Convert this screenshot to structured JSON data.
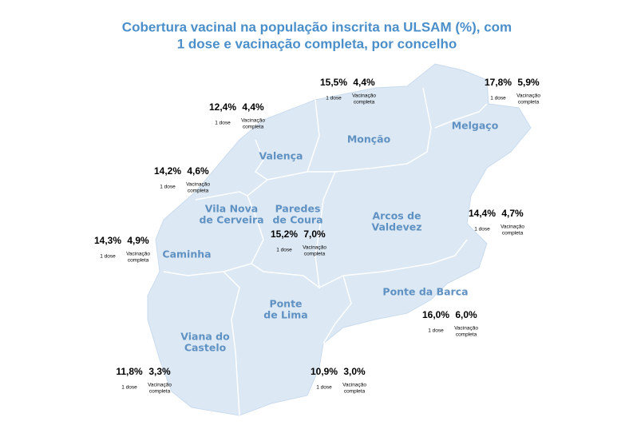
{
  "title": [
    "Cobertura vacinal na população inscrita na ULSAM (%), com",
    "1 dose e vacinação completa, por concelho"
  ],
  "regions": [
    {
      "name": [
        "Melgaço"
      ],
      "dose1": "17,8%",
      "complete": "5,9%",
      "dose1_label": "1 dose",
      "complete_label": [
        "Vacinação",
        "completa"
      ]
    },
    {
      "name": [
        "Monção"
      ],
      "dose1": "15,5%",
      "complete": "4,4%",
      "dose1_label": "1 dose",
      "complete_label": [
        "Vacinação",
        "completa"
      ]
    },
    {
      "name": [
        "Valença"
      ],
      "dose1": "12,4%",
      "complete": "4,4%",
      "dose1_label": "1 dose",
      "complete_label": [
        "Vacinação",
        "completa"
      ]
    },
    {
      "name": [
        "Vila Nova",
        "de Cerveira"
      ],
      "dose1": "14,2%",
      "complete": "4,6%",
      "dose1_label": "1 dose",
      "complete_label": [
        "Vacinação",
        "completa"
      ]
    },
    {
      "name": [
        "Paredes",
        "de Coura"
      ],
      "dose1": "15,2%",
      "complete": "7,0%",
      "dose1_label": "1 dose",
      "complete_label": [
        "Vacinação",
        "completa"
      ]
    },
    {
      "name": [
        "Arcos de",
        "Valdevez"
      ],
      "dose1": "14,4%",
      "complete": "4,7%",
      "dose1_label": "1 dose",
      "complete_label": [
        "Vacinação",
        "completa"
      ]
    },
    {
      "name": [
        "Caminha"
      ],
      "dose1": "14,3%",
      "complete": "4,9%",
      "dose1_label": "1 dose",
      "complete_label": [
        "Vacinação",
        "completa"
      ]
    },
    {
      "name": [
        "Ponte da Barca"
      ],
      "dose1": "16,0%",
      "complete": "6,0%",
      "dose1_label": "1 dose",
      "complete_label": [
        "Vacinação",
        "completa"
      ]
    },
    {
      "name": [
        "Ponte",
        "de Lima"
      ],
      "dose1": "10,9%",
      "complete": "3,0%",
      "dose1_label": "1 dose",
      "complete_label": [
        "Vacinação",
        "completa"
      ]
    },
    {
      "name": [
        "Viana do",
        "Castelo"
      ],
      "dose1": "11,8%",
      "complete": "3,3%",
      "dose1_label": "1 dose",
      "complete_label": [
        "Vacinação",
        "completa"
      ]
    }
  ]
}
